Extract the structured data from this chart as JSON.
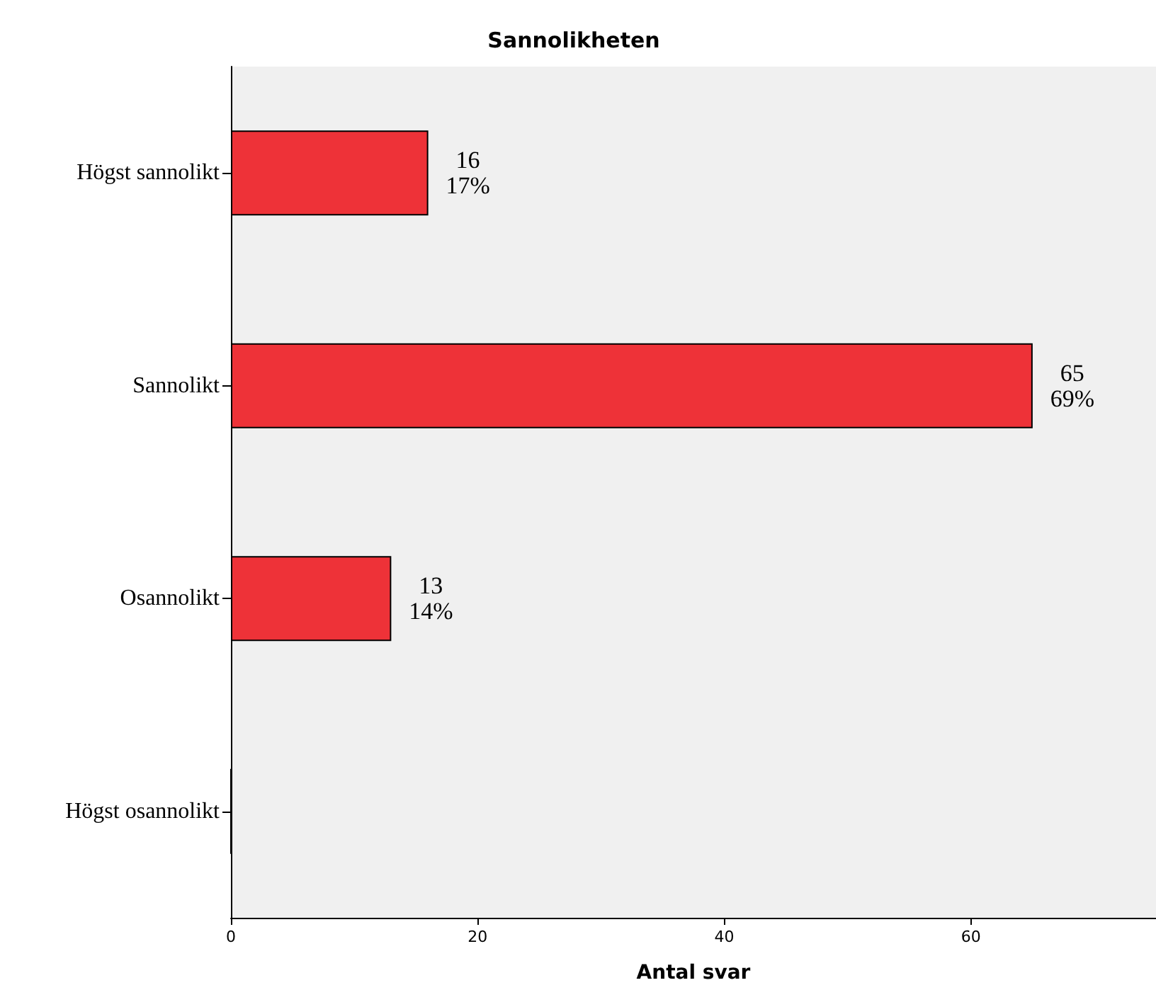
{
  "chart_data": {
    "type": "bar",
    "orientation": "horizontal",
    "title": "Sannolikheten",
    "xlabel": "Antal svar",
    "categories": [
      "Högst sannolikt",
      "Sannolikt",
      "Osannolikt",
      "Högst osannolikt"
    ],
    "values": [
      16,
      65,
      13,
      0
    ],
    "value_labels": [
      "16\n17%",
      "65\n69%",
      "13\n14%",
      null
    ],
    "color": "#ee3238",
    "xlim": [
      0,
      75
    ],
    "xticks": [
      0,
      20,
      40,
      60
    ],
    "grid": false
  }
}
